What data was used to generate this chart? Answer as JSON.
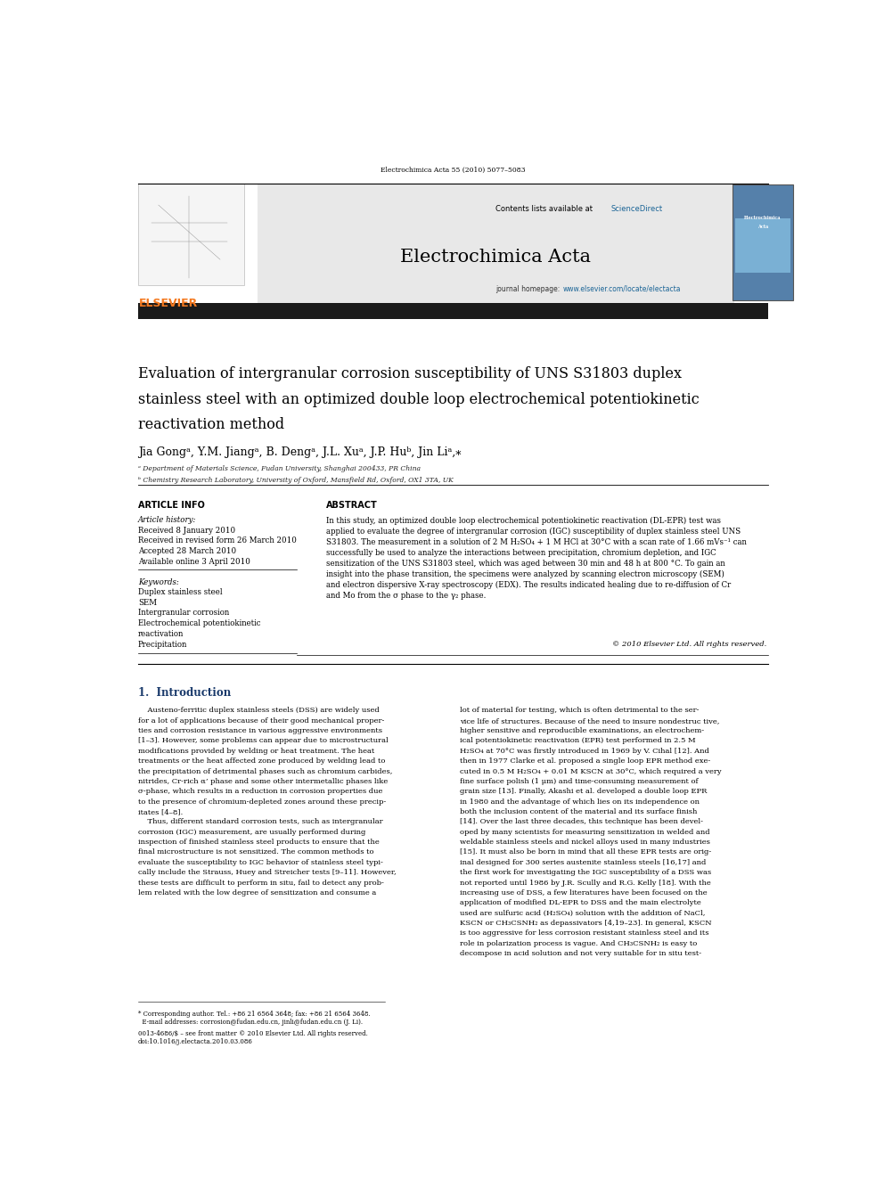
{
  "page_width": 9.92,
  "page_height": 13.23,
  "background_color": "#ffffff",
  "header_citation": "Electrochimica Acta 55 (2010) 5077–5083",
  "journal_name": "Electrochimica Acta",
  "contents_text": "Contents lists available at ScienceDirect",
  "sciencedirect_color": "#1a6496",
  "journal_homepage": "journal homepage: www.elsevier.com/locate/electacta",
  "homepage_color": "#1a6496",
  "article_title_line1": "Evaluation of intergranular corrosion susceptibility of UNS S31803 duplex",
  "article_title_line2": "stainless steel with an optimized double loop electrochemical potentiokinetic",
  "article_title_line3": "reactivation method",
  "authors": "Jia Gongᵃ, Y.M. Jiangᵃ, B. Dengᵃ, J.L. Xuᵃ, J.P. Huᵇ, Jin Liᵃ,⁎",
  "affiliation_a": "ᵃ Department of Materials Science, Fudan University, Shanghai 200433, PR China",
  "affiliation_b": "ᵇ Chemistry Research Laboratory, University of Oxford, Mansfield Rd, Oxford, OX1 3TA, UK",
  "section_article_info": "ARTICLE INFO",
  "section_abstract": "ABSTRACT",
  "article_history_label": "Article history:",
  "received_1": "Received 8 January 2010",
  "received_revised": "Received in revised form 26 March 2010",
  "accepted": "Accepted 28 March 2010",
  "available_online": "Available online 3 April 2010",
  "keywords_label": "Keywords:",
  "keywords": [
    "Duplex stainless steel",
    "SEM",
    "Intergranular corrosion",
    "Electrochemical potentiokinetic",
    "reactivation",
    "Precipitation"
  ],
  "abstract_text": "In this study, an optimized double loop electrochemical potentiokinetic reactivation (DL-EPR) test was applied to evaluate the degree of intergranular corrosion (IGC) susceptibility of duplex stainless steel UNS S31803. The measurement in a solution of 2 M H₂SO₄ + 1 M HCl at 30°C with a scan rate of 1.66 mVs⁻¹ can successfully be used to analyze the interactions between precipitation, chromium depletion, and IGC sensitization of the UNS S31803 steel, which was aged between 30 min and 48 h at 800 °C. To gain an insight into the phase transition, the specimens were analyzed by scanning electron microscopy (SEM) and electron dispersive X-ray spectroscopy (EDX). The results indicated healing due to re-diffusion of Cr and Mo from the σ phase to the γ₂ phase.",
  "copyright_text": "© 2010 Elsevier Ltd. All rights reserved.",
  "intro_heading": "1.  Introduction",
  "intro_col1_lines": [
    "    Austeno-ferritic duplex stainless steels (DSS) are widely used",
    "for a lot of applications because of their good mechanical proper-",
    "ties and corrosion resistance in various aggressive environments",
    "[1–3]. However, some problems can appear due to microstructural",
    "modifications provided by welding or heat treatment. The heat",
    "treatments or the heat affected zone produced by welding lead to",
    "the precipitation of detrimental phases such as chromium carbides,",
    "nitrides, Cr-rich α’ phase and some other intermetallic phases like",
    "σ-phase, which results in a reduction in corrosion properties due",
    "to the presence of chromium-depleted zones around these precip-",
    "itates [4–8].",
    "    Thus, different standard corrosion tests, such as intergranular",
    "corrosion (IGC) measurement, are usually performed during",
    "inspection of finished stainless steel products to ensure that the",
    "final microstructure is not sensitized. The common methods to",
    "evaluate the susceptibility to IGC behavior of stainless steel typi-",
    "cally include the Strauss, Huey and Streicher tests [9–11]. However,",
    "these tests are difficult to perform in situ, fail to detect any prob-",
    "lem related with the low degree of sensitization and consume a"
  ],
  "intro_col2_lines": [
    "lot of material for testing, which is often detrimental to the ser-",
    "vice life of structures. Because of the need to insure nondestruc tive,",
    "higher sensitive and reproducible examinations, an electrochem-",
    "ical potentiokinetic reactivation (EPR) test performed in 2.5 M",
    "H₂SO₄ at 70°C was firstly introduced in 1969 by V. Cihal [12]. And",
    "then in 1977 Clarke et al. proposed a single loop EPR method exe-",
    "cuted in 0.5 M H₂SO₄ + 0.01 M KSCN at 30°C, which required a very",
    "fine surface polish (1 μm) and time-consuming measurement of",
    "grain size [13]. Finally, Akashi et al. developed a double loop EPR",
    "in 1980 and the advantage of which lies on its independence on",
    "both the inclusion content of the material and its surface finish",
    "[14]. Over the last three decades, this technique has been devel-",
    "oped by many scientists for measuring sensitization in welded and",
    "weldable stainless steels and nickel alloys used in many industries",
    "[15]. It must also be born in mind that all these EPR tests are orig-",
    "inal designed for 300 series austenite stainless steels [16,17] and",
    "the first work for investigating the IGC susceptibility of a DSS was",
    "not reported until 1986 by J.R. Scully and R.G. Kelly [18]. With the",
    "increasing use of DSS, a few literatures have been focused on the",
    "application of modified DL-EPR to DSS and the main electrolyte",
    "used are sulfuric acid (H₂SO₄) solution with the addition of NaCl,",
    "KSCN or CH₃CSNH₂ as depassivators [4,19–23]. In general, KSCN",
    "is too aggressive for less corrosion resistant stainless steel and its",
    "role in polarization process is vague. And CH₃CSNH₂ is easy to",
    "decompose in acid solution and not very suitable for in situ test-"
  ],
  "footer_line1": "0013-4686/$ – see front matter © 2010 Elsevier Ltd. All rights reserved.",
  "footer_line2": "doi:10.1016/j.electacta.2010.03.086",
  "footnote_line1": "* Corresponding author. Tel.: +86 21 6564 3648; fax: +86 21 6564 3648.",
  "footnote_line2": "  E-mail addresses: corrosion@fudan.edu.cn, jinli@fudan.edu.cn (J. Li).",
  "header_bg": "#e8e8e8",
  "elsevier_orange": "#f47920",
  "top_bar_color": "#1a1a1a",
  "intro_color": "#1a3a6b"
}
